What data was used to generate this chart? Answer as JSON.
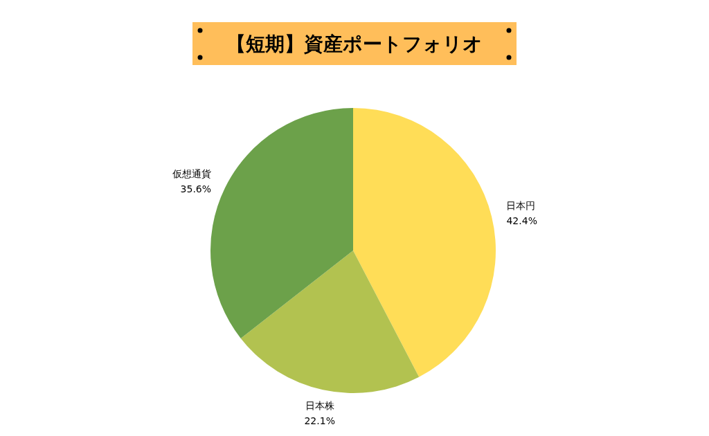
{
  "chart_data": {
    "type": "pie",
    "title": "【短期】資産ポートフォリオ",
    "categories": [
      "日本円",
      "日本株",
      "仮想通貨"
    ],
    "values": [
      42.4,
      22.1,
      35.6
    ],
    "colors": [
      "#ffdd57",
      "#b2c250",
      "#6ca14a"
    ],
    "value_labels": [
      "42.4%",
      "22.1%",
      "35.6%"
    ]
  }
}
